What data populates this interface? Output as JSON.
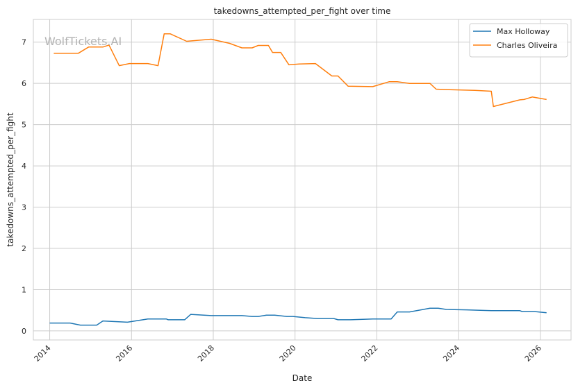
{
  "watermark": "WolfTickets.AI",
  "chart_data": {
    "type": "line",
    "title": "takedowns_attempted_per_fight over time",
    "xlabel": "Date",
    "ylabel": "takedowns_attempted_per_fight",
    "xlim": [
      2013.6,
      2026.75
    ],
    "ylim": [
      -0.22,
      7.55
    ],
    "x_ticks": [
      2014,
      2016,
      2018,
      2020,
      2022,
      2024,
      2026
    ],
    "y_ticks": [
      0,
      1,
      2,
      3,
      4,
      5,
      6,
      7
    ],
    "grid": true,
    "legend_position": "top-right",
    "series": [
      {
        "name": "Max Holloway",
        "color": "#1f77b4",
        "x": [
          2014.0,
          2014.5,
          2014.75,
          2015.15,
          2015.3,
          2015.9,
          2016.4,
          2016.85,
          2016.9,
          2017.3,
          2017.45,
          2017.95,
          2018.7,
          2018.95,
          2019.1,
          2019.3,
          2019.5,
          2019.8,
          2019.95,
          2020.25,
          2020.55,
          2020.95,
          2021.05,
          2021.35,
          2021.9,
          2022.35,
          2022.5,
          2022.8,
          2023.3,
          2023.5,
          2023.7,
          2024.2,
          2024.8,
          2025.5,
          2025.55,
          2025.85,
          2026.15
        ],
        "y": [
          0.19,
          0.19,
          0.14,
          0.14,
          0.24,
          0.21,
          0.29,
          0.29,
          0.27,
          0.27,
          0.4,
          0.37,
          0.37,
          0.35,
          0.35,
          0.38,
          0.38,
          0.35,
          0.35,
          0.32,
          0.3,
          0.3,
          0.27,
          0.27,
          0.29,
          0.29,
          0.46,
          0.46,
          0.55,
          0.55,
          0.52,
          0.51,
          0.49,
          0.49,
          0.47,
          0.47,
          0.44
        ]
      },
      {
        "name": "Charles Oliveira",
        "color": "#ff7f0e",
        "x": [
          2014.1,
          2014.7,
          2014.95,
          2015.3,
          2015.45,
          2015.7,
          2015.95,
          2016.4,
          2016.65,
          2016.8,
          2016.95,
          2017.35,
          2017.95,
          2018.4,
          2018.7,
          2018.95,
          2019.1,
          2019.35,
          2019.45,
          2019.65,
          2019.85,
          2020.1,
          2020.5,
          2020.9,
          2021.05,
          2021.3,
          2021.9,
          2022.3,
          2022.5,
          2022.8,
          2023.3,
          2023.45,
          2023.7,
          2024.4,
          2024.8,
          2024.85,
          2025.5,
          2025.6,
          2025.8,
          2026.15
        ],
        "y": [
          6.73,
          6.73,
          6.88,
          6.88,
          6.93,
          6.43,
          6.48,
          6.48,
          6.43,
          7.2,
          7.2,
          7.02,
          7.07,
          6.97,
          6.86,
          6.86,
          6.92,
          6.92,
          6.75,
          6.75,
          6.45,
          6.47,
          6.48,
          6.18,
          6.18,
          5.93,
          5.92,
          6.04,
          6.04,
          6.0,
          6.0,
          5.86,
          5.85,
          5.83,
          5.81,
          5.44,
          5.6,
          5.61,
          5.67,
          5.61
        ]
      }
    ]
  }
}
